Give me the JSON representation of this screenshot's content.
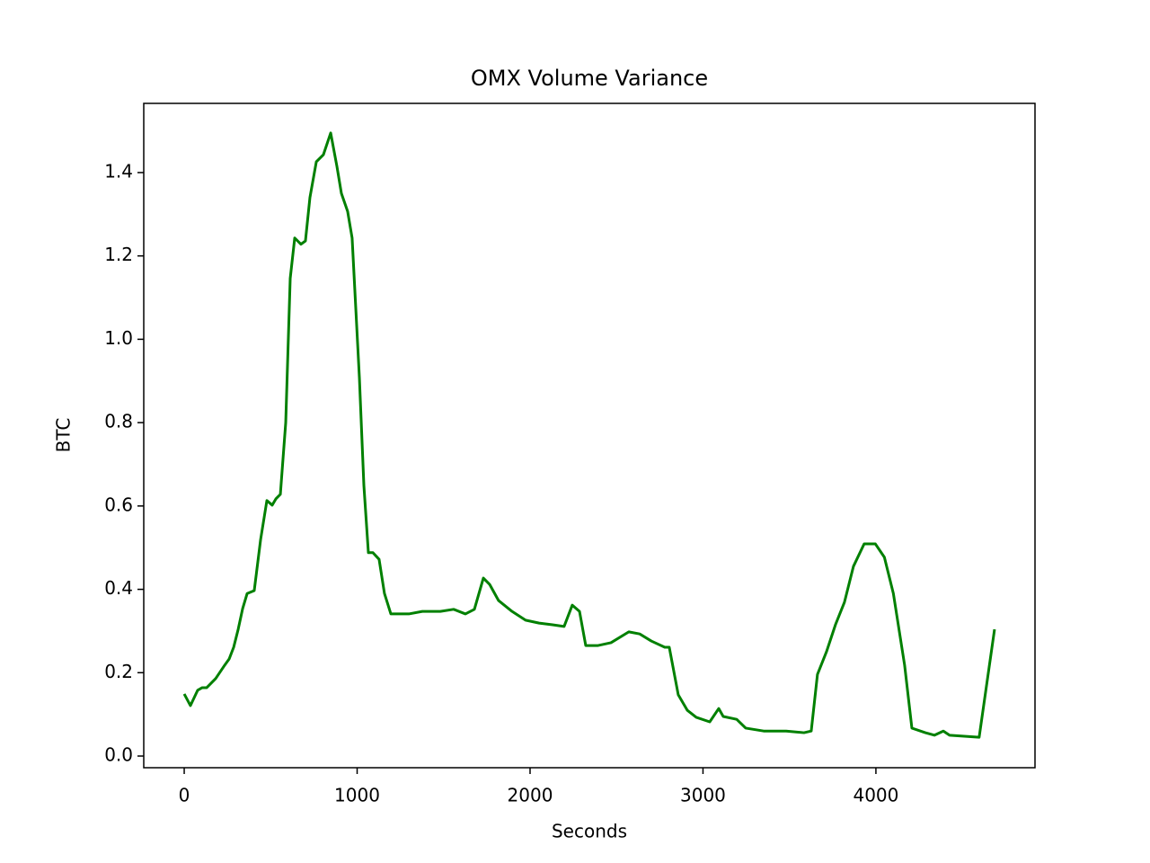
{
  "chart_data": {
    "type": "line",
    "title": "OMX Volume Variance",
    "x_label": "Seconds",
    "y_label": "BTC",
    "x": [
      0,
      36,
      78,
      104,
      130,
      182,
      234,
      260,
      286,
      312,
      338,
      364,
      405,
      442,
      478,
      509,
      530,
      556,
      587,
      613,
      639,
      675,
      701,
      727,
      764,
      805,
      847,
      883,
      909,
      945,
      971,
      1013,
      1039,
      1065,
      1091,
      1127,
      1158,
      1195,
      1247,
      1299,
      1377,
      1481,
      1558,
      1626,
      1678,
      1730,
      1766,
      1818,
      1896,
      1974,
      2052,
      2130,
      2197,
      2244,
      2286,
      2322,
      2390,
      2468,
      2571,
      2634,
      2701,
      2779,
      2805,
      2857,
      2909,
      2961,
      3039,
      3091,
      3117,
      3195,
      3247,
      3351,
      3481,
      3584,
      3626,
      3662,
      3714,
      3766,
      3818,
      3870,
      3932,
      3997,
      4049,
      4101,
      4166,
      4208,
      4286,
      4338,
      4390,
      4426,
      4597,
      4686
    ],
    "series": [
      {
        "name": "BTC",
        "color": "#008000",
        "values": [
          0.149,
          0.121,
          0.158,
          0.164,
          0.164,
          0.186,
          0.218,
          0.233,
          0.261,
          0.304,
          0.354,
          0.39,
          0.397,
          0.52,
          0.613,
          0.602,
          0.617,
          0.628,
          0.8,
          1.146,
          1.243,
          1.228,
          1.236,
          1.34,
          1.426,
          1.443,
          1.495,
          1.415,
          1.35,
          1.307,
          1.243,
          0.908,
          0.649,
          0.488,
          0.488,
          0.472,
          0.39,
          0.341,
          0.341,
          0.341,
          0.347,
          0.347,
          0.352,
          0.341,
          0.352,
          0.427,
          0.412,
          0.373,
          0.347,
          0.326,
          0.319,
          0.315,
          0.311,
          0.362,
          0.347,
          0.265,
          0.265,
          0.272,
          0.298,
          0.293,
          0.276,
          0.261,
          0.261,
          0.147,
          0.11,
          0.093,
          0.082,
          0.114,
          0.095,
          0.088,
          0.067,
          0.06,
          0.06,
          0.056,
          0.06,
          0.196,
          0.25,
          0.315,
          0.369,
          0.455,
          0.509,
          0.509,
          0.477,
          0.39,
          0.218,
          0.067,
          0.056,
          0.05,
          0.06,
          0.05,
          0.045,
          0.304
        ]
      }
    ],
    "xlim": [
      -234,
      4920
    ],
    "xticks": [
      0,
      1000,
      2000,
      3000,
      4000
    ],
    "ylim": [
      -0.028,
      1.566
    ],
    "yticks": [
      {
        "value": 0,
        "label": "0.0"
      },
      0.2,
      0.4,
      0.6,
      0.8,
      {
        "value": 1,
        "label": "1.0"
      },
      1.2,
      1.4
    ],
    "grid": false
  }
}
